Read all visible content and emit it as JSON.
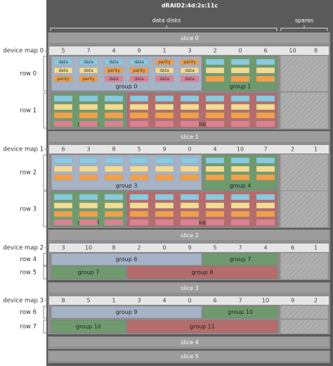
{
  "header": {
    "title": "dRAID2:4d:2s:11c",
    "data_label": "data disks",
    "spares_label": "spares"
  },
  "slices": [
    {
      "title": "slice 0",
      "map_label": "device map 0",
      "device_map": [
        "5",
        "7",
        "4",
        "9",
        "1",
        "3",
        "2",
        "0",
        "6",
        "10",
        "8"
      ],
      "rows": [
        {
          "label": "row 0",
          "groups": [
            "group 0",
            "group 1"
          ]
        },
        {
          "label": "row 1",
          "groups": [
            "group 1",
            "group 2"
          ]
        }
      ]
    },
    {
      "title": "slice 1",
      "map_label": "device map 1",
      "device_map": [
        "6",
        "3",
        "8",
        "5",
        "9",
        "0",
        "4",
        "10",
        "7",
        "2",
        "1"
      ],
      "rows": [
        {
          "label": "row 2",
          "groups": [
            "group 3",
            "group 4"
          ]
        },
        {
          "label": "row 3",
          "groups": [
            "group 4",
            "group 5"
          ]
        }
      ]
    },
    {
      "title": "slice 2",
      "map_label": "device map 2",
      "device_map": [
        "3",
        "10",
        "8",
        "2",
        "0",
        "9",
        "5",
        "7",
        "4",
        "6",
        "1"
      ],
      "rows": [
        {
          "label": "row 4",
          "groups": [
            "group 6",
            "group 7"
          ]
        },
        {
          "label": "row 5",
          "groups": [
            "group 7",
            "group 8"
          ]
        }
      ]
    },
    {
      "title": "slice 3",
      "map_label": "device map 3",
      "device_map": [
        "8",
        "5",
        "1",
        "3",
        "4",
        "0",
        "6",
        "7",
        "10",
        "9",
        "2"
      ],
      "rows": [
        {
          "label": "row 6",
          "groups": [
            "group 9",
            "group 10"
          ]
        },
        {
          "label": "row 7",
          "groups": [
            "group 10",
            "group 11"
          ]
        }
      ]
    },
    {
      "title": "slice 4"
    },
    {
      "title": "slice 5"
    }
  ],
  "block_labels": [
    [
      "data",
      "data",
      "data",
      "data",
      "parity",
      "parity"
    ],
    [
      "data",
      "data",
      "parity",
      "parity",
      "data",
      "data"
    ],
    [
      "parity",
      "parity",
      "data",
      "data",
      "data",
      "data"
    ]
  ]
}
